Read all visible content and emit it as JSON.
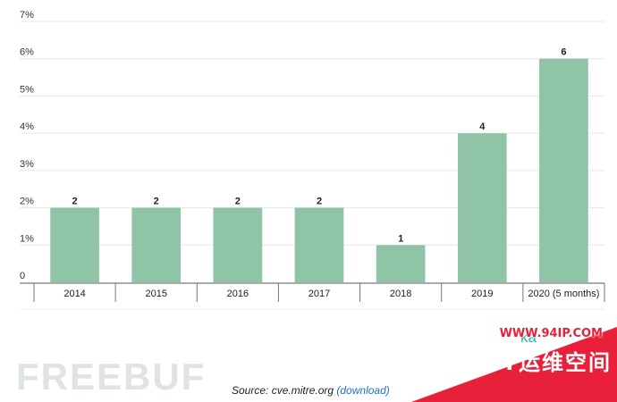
{
  "chart_data": {
    "type": "bar",
    "categories": [
      "2014",
      "2015",
      "2016",
      "2017",
      "2018",
      "2019",
      "2020 (5 months)"
    ],
    "values": [
      2,
      2,
      2,
      2,
      1,
      4,
      6
    ],
    "data_labels": [
      "2",
      "2",
      "2",
      "2",
      "1",
      "4",
      "6"
    ],
    "y_ticks": [
      {
        "value": 0,
        "label": "0"
      },
      {
        "value": 1,
        "label": "1%"
      },
      {
        "value": 2,
        "label": "2%"
      },
      {
        "value": 3,
        "label": "3%"
      },
      {
        "value": 4,
        "label": "4%"
      },
      {
        "value": 5,
        "label": "5%"
      },
      {
        "value": 6,
        "label": "6%"
      },
      {
        "value": 7,
        "label": "7%"
      }
    ],
    "ylim": [
      0,
      7
    ],
    "grid": true,
    "legend": "none",
    "bar_color": "#8fc4a6",
    "title": "",
    "xlabel": "",
    "ylabel": ""
  },
  "footer": {
    "source_prefix": "Source: cve.mitre.org",
    "source_link": "(download)"
  },
  "watermarks": {
    "brand_partial": "ka",
    "left_mark": "FREEBUF",
    "corner_url": "WWW.94IP.COM",
    "corner_name": "IT运维空间"
  }
}
